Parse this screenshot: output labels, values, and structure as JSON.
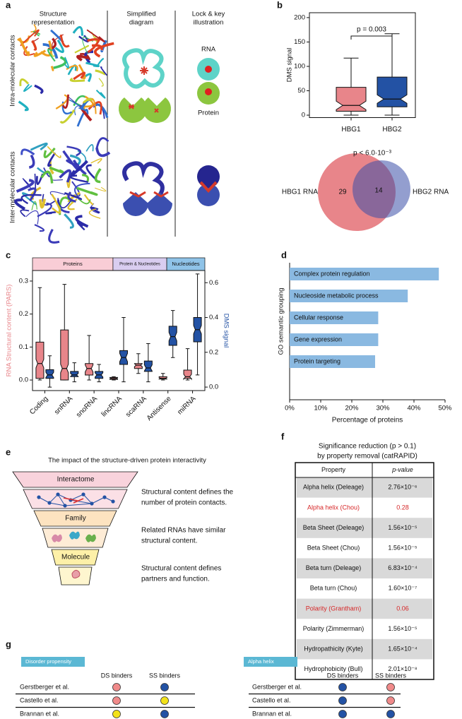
{
  "panels": [
    "a",
    "b",
    "c",
    "d",
    "e",
    "f",
    "g"
  ],
  "panel_a": {
    "columns": [
      [
        "Structure",
        "representation"
      ],
      [
        "Simplified",
        "diagram"
      ],
      [
        "Lock & key",
        "illustration"
      ]
    ],
    "rows": [
      "Intra-molecular contacts",
      "Inter-molecular contacts"
    ],
    "labels": [
      "RNA",
      "Protein"
    ]
  },
  "chart_data": [
    {
      "type": "box",
      "ylabel": "DMS signal",
      "categories": [
        "HBG1",
        "HBG2"
      ],
      "colors": [
        "#e8858a",
        "#2352a4"
      ],
      "boxes": [
        {
          "min": 0,
          "q1": 8,
          "median": 20,
          "q3": 57,
          "max": 117
        },
        {
          "min": 0,
          "q1": 17,
          "median": 33,
          "q3": 78,
          "max": 167
        }
      ],
      "ylim": [
        -5,
        210
      ],
      "yticks": [
        0,
        50,
        100,
        150,
        200
      ],
      "annotation": "p = 0.003",
      "notched": true
    },
    {
      "type": "box",
      "ylabel": "RNA Structural content (PARS)",
      "y2label": "DMS signal",
      "categories": [
        "Coding",
        "snRNA",
        "snoRNA",
        "lincRNA",
        "scaRNA",
        "Antisense",
        "miRNA"
      ],
      "groups": [
        {
          "label": "Proteins",
          "color": "#f9cdd6"
        },
        {
          "label": "Protein & Nucleotides",
          "color": "#d9cdf0"
        },
        {
          "label": "Nucleotides",
          "color": "#8fc3e8"
        }
      ],
      "notched": true,
      "series": [
        {
          "color": "#e8858a",
          "axis": "y",
          "boxes": [
            {
              "min": 0,
              "q1": 0.005,
              "median": 0.05,
              "q3": 0.115,
              "max": 0.28
            },
            {
              "min": 0,
              "q1": 0,
              "median": 0.035,
              "q3": 0.152,
              "max": 0.29
            },
            {
              "min": 0,
              "q1": 0.015,
              "median": 0.035,
              "q3": 0.05,
              "max": 0.135
            },
            {
              "min": 0,
              "q1": 0.002,
              "median": 0.005,
              "q3": 0.008,
              "max": 0.01
            },
            {
              "min": 0.02,
              "q1": 0.035,
              "median": 0.045,
              "q3": 0.05,
              "max": 0.08
            },
            {
              "min": 0,
              "q1": 0.003,
              "median": 0.005,
              "q3": 0.01,
              "max": 0.02
            },
            {
              "min": 0,
              "q1": 0.005,
              "median": 0.01,
              "q3": 0.03,
              "max": 0.095
            }
          ]
        },
        {
          "color": "#2352a4",
          "axis": "y2",
          "boxes": [
            {
              "min": 0,
              "q1": 0.05,
              "median": 0.07,
              "q3": 0.1,
              "max": 0.18
            },
            {
              "min": 0.03,
              "q1": 0.06,
              "median": 0.07,
              "q3": 0.09,
              "max": 0.14
            },
            {
              "min": 0.03,
              "q1": 0.05,
              "median": 0.07,
              "q3": 0.09,
              "max": 0.13
            },
            {
              "min": 0.03,
              "q1": 0.13,
              "median": 0.17,
              "q3": 0.21,
              "max": 0.4
            },
            {
              "min": 0.03,
              "q1": 0.09,
              "median": 0.11,
              "q3": 0.15,
              "max": 0.25
            },
            {
              "min": 0.17,
              "q1": 0.24,
              "median": 0.29,
              "q3": 0.35,
              "max": 0.44
            },
            {
              "min": 0.07,
              "q1": 0.26,
              "median": 0.33,
              "q3": 0.4,
              "max": 0.65
            }
          ]
        }
      ],
      "ylim": [
        -0.032,
        0.332
      ],
      "yticks": [
        {
          "value": 0,
          "label": "0.0"
        },
        0.1,
        0.2,
        0.3
      ],
      "y2lim": [
        -0.02,
        0.67
      ],
      "y2ticks": [
        {
          "value": 0,
          "label": "0.0"
        },
        0.2,
        0.4,
        0.6
      ]
    },
    {
      "type": "hbar",
      "ylabel": "GO semantic grouping",
      "xlabel": "Percentage of proteins",
      "categories": [
        "Complex protein regulation",
        "Nucleoside metabolic process",
        "Cellular response",
        "Gene expression",
        "Protein targeting"
      ],
      "values": [
        48,
        38,
        28.5,
        28.5,
        27.5
      ],
      "color": "#8ab9e1",
      "xlim": [
        0,
        50
      ],
      "xticks": [
        {
          "value": 0,
          "label": "0%"
        },
        {
          "value": 10,
          "label": "10%"
        },
        {
          "value": 20,
          "label": "20%"
        },
        {
          "value": 30,
          "label": "30%"
        },
        {
          "value": 40,
          "label": "40%"
        },
        {
          "value": 50,
          "label": "50%"
        }
      ]
    }
  ],
  "venn": {
    "title": "p < 6.0·10⁻³",
    "left_label": "HBG1 RNA",
    "right_label": "HBG2 RNA",
    "left_only": 29,
    "overlap": 14,
    "left_color": "#e8858a",
    "right_color": "#3b4fa8"
  },
  "panel_e": {
    "title": "The impact of the structure-driven protein interactivity",
    "levels": [
      "Interactome",
      "Family",
      "Molecule"
    ],
    "descriptions": [
      [
        "Structural content defines the",
        "number of protein contacts."
      ],
      [
        "Related RNAs have similar",
        "structural content."
      ],
      [
        "Structural content defines",
        "partners and function."
      ]
    ]
  },
  "table_f": {
    "title": [
      "Significance reduction (p > 0.1)",
      "by property removal (catRAPID)"
    ],
    "header": [
      "Property",
      "p-value"
    ],
    "rows": [
      [
        "Alpha helix (Deleage)",
        "2.76×10⁻⁶"
      ],
      [
        "Alpha helix (Chou)",
        "0.28"
      ],
      [
        "Beta Sheet (Deleage)",
        "1.56×10⁻⁵"
      ],
      [
        "Beta Sheet (Chou)",
        "1.56×10⁻⁵"
      ],
      [
        "Beta turn (Deleage)",
        "6.83×10⁻⁴"
      ],
      [
        "Beta turn (Chou)",
        "1.60×10⁻⁷"
      ],
      [
        "Polarity (Grantham)",
        "0.06"
      ],
      [
        "Polarity (Zimmerman)",
        "1.56×10⁻⁵"
      ],
      [
        "Hydropathicity (Kyte)",
        "1.65×10⁻⁴"
      ],
      [
        "Hydrophobicity (Bull)",
        "2.01×10⁻⁸"
      ]
    ],
    "red_rows": [
      1,
      6
    ],
    "highlight_color": "#d62728"
  },
  "panel_g": [
    {
      "title": "Disorder propensity",
      "columns": [
        "DS binders",
        "SS binders"
      ],
      "rows": [
        {
          "name": "Gerstberger et al.",
          "colors": [
            "#f08a8a",
            "#2352a4"
          ]
        },
        {
          "name": "Castello et al.",
          "colors": [
            "#f08a8a",
            "#f2e21a"
          ]
        },
        {
          "name": "Brannan et al.",
          "colors": [
            "#f2e21a",
            "#2352a4"
          ]
        }
      ]
    },
    {
      "title": "Alpha helix",
      "columns": [
        "DS binders",
        "SS binders"
      ],
      "rows": [
        {
          "name": "Gerstberger et al.",
          "colors": [
            "#2352a4",
            "#f08a8a"
          ]
        },
        {
          "name": "Castello et al.",
          "colors": [
            "#2352a4",
            "#f08a8a"
          ]
        },
        {
          "name": "Brannan et al.",
          "colors": [
            "#2352a4",
            "#2352a4"
          ]
        }
      ]
    }
  ]
}
